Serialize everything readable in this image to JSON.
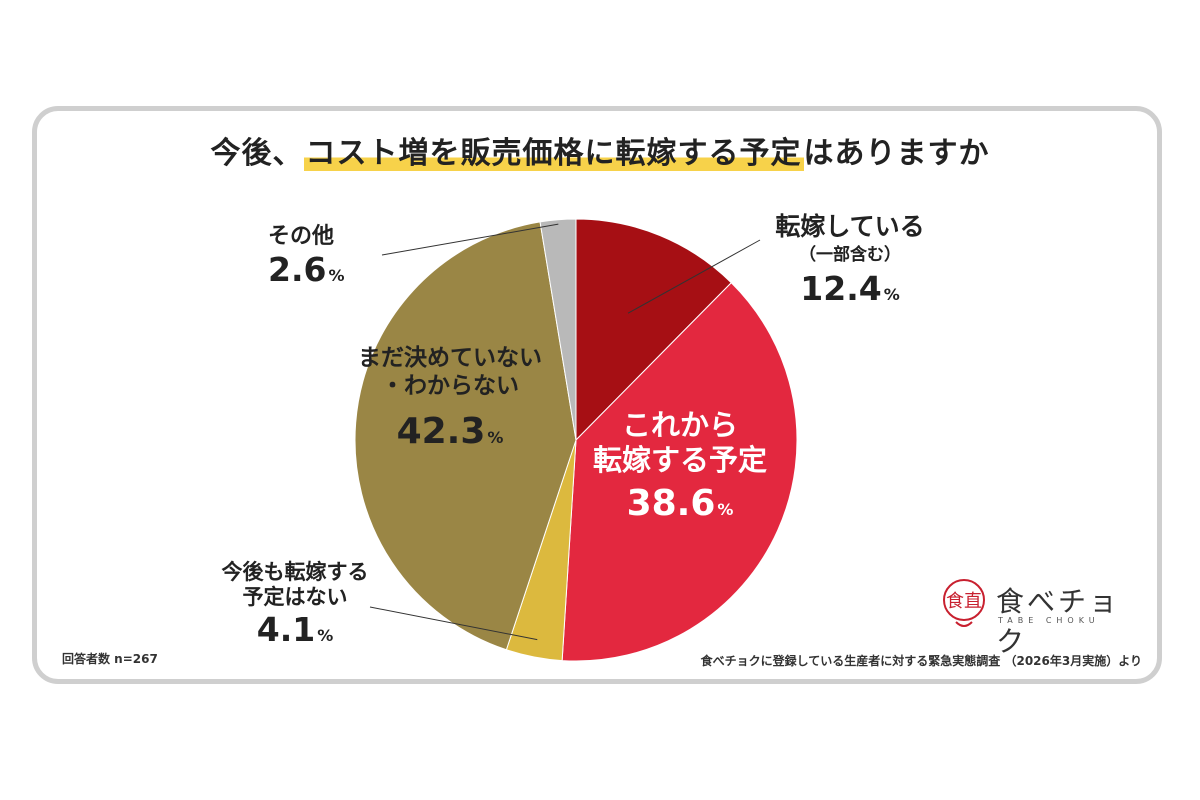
{
  "title": {
    "prefix": "今後、",
    "highlight": "コスト増を販売価格に転嫁する予定",
    "suffix": "はありますか"
  },
  "chart_data": {
    "type": "pie",
    "title": "今後、コスト増を販売価格に転嫁する予定はありますか",
    "unit": "%",
    "slices": [
      {
        "label": "転嫁している",
        "sublabel": "（一部含む）",
        "value": 12.4,
        "value_label": "12.4",
        "color": "#a60f14"
      },
      {
        "label": "これから転嫁する予定",
        "value": 38.6,
        "value_label": "38.6",
        "color": "#e3283f"
      },
      {
        "label": "今後も転嫁する予定はない",
        "value": 4.1,
        "value_label": "4.1",
        "color": "#dcb93e"
      },
      {
        "label": "まだ決めていない・わからない",
        "value": 42.3,
        "value_label": "42.3",
        "color": "#9a8645"
      },
      {
        "label": "その他",
        "value": 2.6,
        "value_label": "2.6",
        "color": "#b9b9b9"
      }
    ]
  },
  "labels": {
    "tenka": {
      "line1": "転嫁している",
      "sub": "（一部含む）",
      "pct": "12.4"
    },
    "korekara": {
      "line1": "これから",
      "line2": "転嫁する予定",
      "pct": "38.6"
    },
    "nai": {
      "line1": "今後も転嫁する",
      "line2": "予定はない",
      "pct": "4.1"
    },
    "mada": {
      "line1": "まだ決めていない",
      "line2": "・わからない",
      "pct": "42.3"
    },
    "sonota": {
      "line1": "その他",
      "pct": "2.6"
    },
    "pct_sign": "%"
  },
  "footnote_left": "回答者数 n=267",
  "footnote_right": "食べチョクに登録している生産者に対する緊急実態調査 （2026年3月実施）より",
  "logo": {
    "text": "食べチョク",
    "sub": "TABE CHOKU",
    "mark": "食直",
    "color": "#c8202f"
  }
}
